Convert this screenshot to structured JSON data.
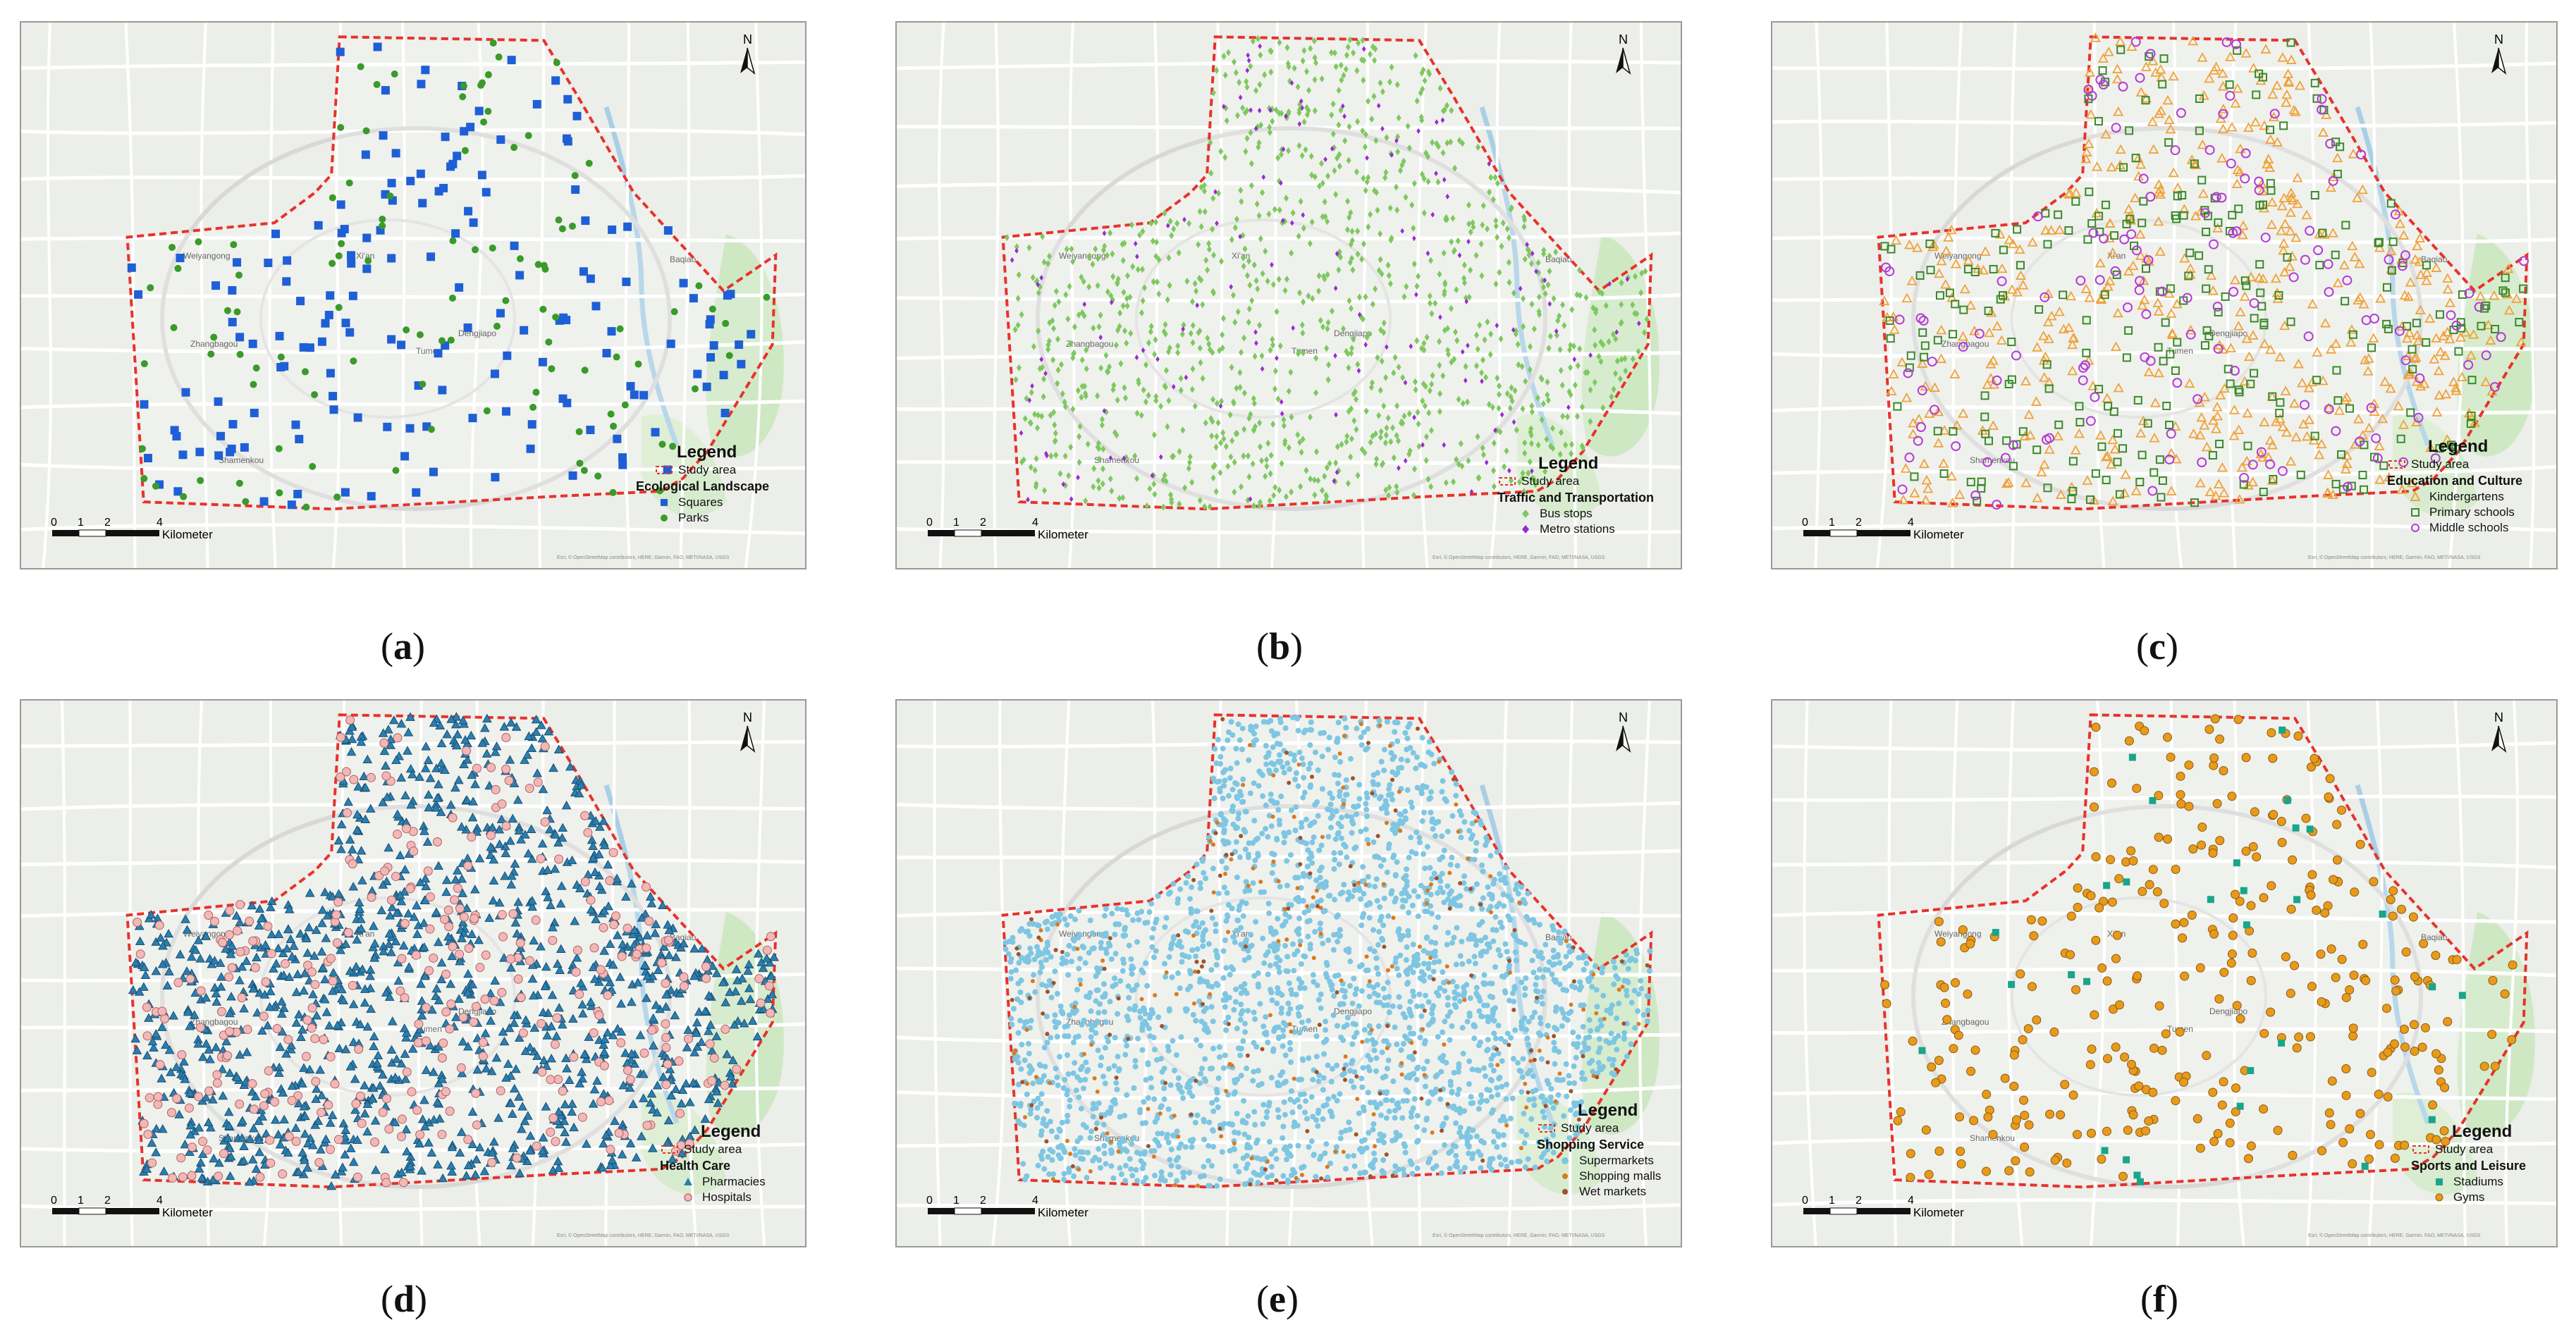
{
  "legend_title": "Legend",
  "study_area_label": "Study area",
  "scale": {
    "ticks": [
      "0",
      "1",
      "2",
      "4"
    ],
    "unit": "Kilometer"
  },
  "north_label": "N",
  "credits": "Esri, © OpenStreetMap contributors, HERE, Garmin, FAO, METI/NASA, USGS",
  "colors": {
    "boundary": "#e8322b",
    "squares": "#1f5fd6",
    "parks": "#3a9a2a",
    "bus_stops": "#7ec860",
    "metro_stations": "#9a2bd0",
    "kindergartens": "#f0a23a",
    "primary_schools": "#3a8a2a",
    "middle_schools": "#b53ad6",
    "pharmacies": "#2b7fb0",
    "hospitals": "#f2b8b8",
    "supermarkets": "#7ec6e2",
    "shopping_malls": "#d97a1f",
    "wet_markets": "#a0522d",
    "stadiums": "#1aa58a",
    "gyms": "#e89a1a"
  },
  "map_labels": [
    "Weiyangong",
    "Xi'an",
    "Baqiao",
    "Zhangbagou",
    "Dengjiapo",
    "Shamenkou",
    "Tumen"
  ],
  "panels": [
    {
      "id": "a",
      "caption": "a",
      "group": "Ecological Landscape",
      "items": [
        {
          "label": "Squares",
          "icon": "square-icon",
          "color_key": "squares"
        },
        {
          "label": "Parks",
          "icon": "circle-icon",
          "color_key": "parks"
        }
      ]
    },
    {
      "id": "b",
      "caption": "b",
      "group": "Traffic and Transportation",
      "items": [
        {
          "label": "Bus stops",
          "icon": "diamond-icon",
          "color_key": "bus_stops"
        },
        {
          "label": "Metro stations",
          "icon": "diamond-icon",
          "color_key": "metro_stations"
        }
      ]
    },
    {
      "id": "c",
      "caption": "c",
      "group": "Education and Culture",
      "items": [
        {
          "label": "Kindergartens",
          "icon": "triangle-outline-icon",
          "color_key": "kindergartens"
        },
        {
          "label": "Primary schools",
          "icon": "square-outline-icon",
          "color_key": "primary_schools"
        },
        {
          "label": "Middle schools",
          "icon": "circle-outline-icon",
          "color_key": "middle_schools"
        }
      ]
    },
    {
      "id": "d",
      "caption": "d",
      "group": "Health Care",
      "items": [
        {
          "label": "Pharmacies",
          "icon": "triangle-icon",
          "color_key": "pharmacies"
        },
        {
          "label": "Hospitals",
          "icon": "circle-outline-icon",
          "color_key": "hospitals"
        }
      ]
    },
    {
      "id": "e",
      "caption": "e",
      "group": "Shopping Service",
      "items": [
        {
          "label": "Supermarkets",
          "icon": "circle-icon",
          "color_key": "supermarkets"
        },
        {
          "label": "Shopping malls",
          "icon": "circle-icon",
          "color_key": "shopping_malls"
        },
        {
          "label": "Wet markets",
          "icon": "circle-icon",
          "color_key": "wet_markets"
        }
      ]
    },
    {
      "id": "f",
      "caption": "f",
      "group": "Sports and Leisure",
      "items": [
        {
          "label": "Stadiums",
          "icon": "square-icon",
          "color_key": "stadiums"
        },
        {
          "label": "Gyms",
          "icon": "circle-icon",
          "color_key": "gyms"
        }
      ]
    }
  ]
}
